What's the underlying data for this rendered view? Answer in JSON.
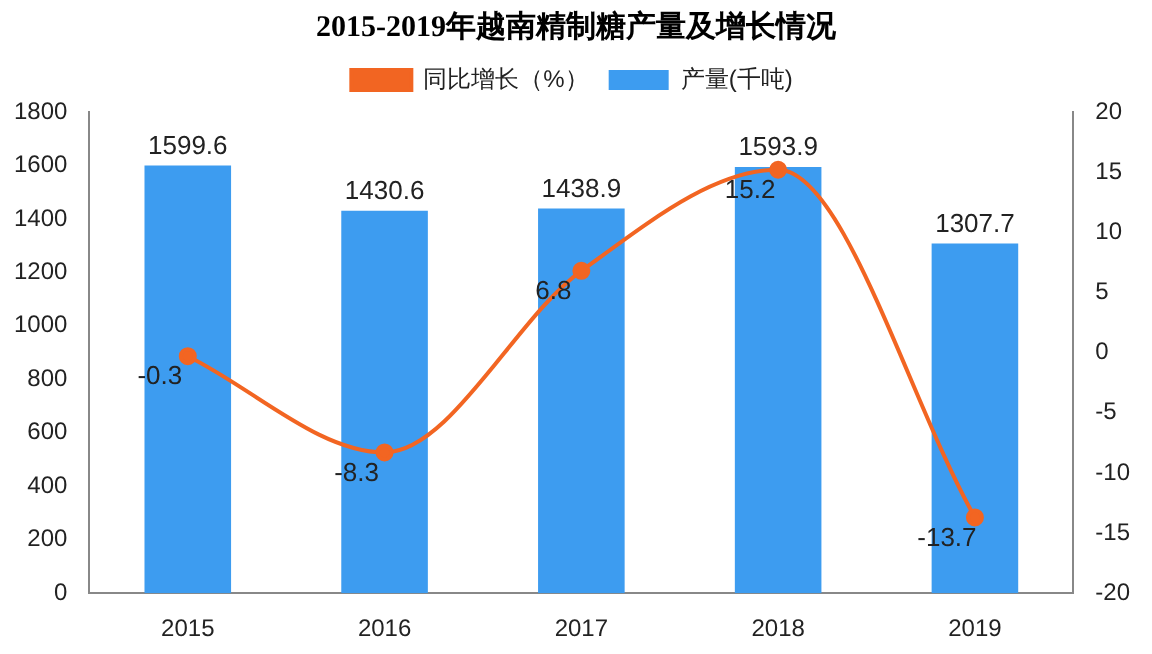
{
  "chart_data": {
    "type": "bar",
    "title": "2015-2019年越南精制糖产量及增长情况",
    "categories": [
      "2015",
      "2016",
      "2017",
      "2018",
      "2019"
    ],
    "series": [
      {
        "name": "产量(千吨)",
        "color": "#3d9cf0",
        "values": [
          1599.6,
          1430.6,
          1438.9,
          1593.9,
          1307.7
        ]
      },
      {
        "name": "同比增长（%）",
        "type": "line",
        "axis": "y2",
        "color": "#f26522",
        "values": [
          -0.3,
          -8.3,
          6.8,
          15.2,
          -13.7
        ]
      }
    ],
    "ylim": [
      0,
      1800
    ],
    "yticks": [
      0,
      200,
      400,
      600,
      800,
      1000,
      1200,
      1400,
      1600,
      1800
    ],
    "y2lim": [
      -20,
      20
    ],
    "y2ticks": [
      -20,
      -15,
      -10,
      -5,
      0,
      5,
      10,
      15,
      20
    ],
    "data_labels": true,
    "legend": "top",
    "grid": false,
    "marker": "circle"
  }
}
